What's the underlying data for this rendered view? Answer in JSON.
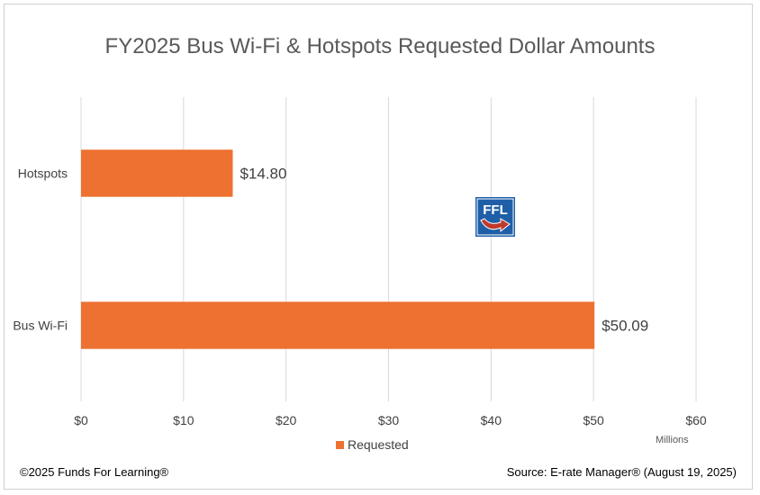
{
  "chart_data": {
    "type": "bar",
    "orientation": "horizontal",
    "title": "FY2025 Bus Wi-Fi & Hotspots Requested Dollar Amounts",
    "categories": [
      "Hotspots",
      "Bus Wi-Fi"
    ],
    "series": [
      {
        "name": "Requested",
        "values": [
          14.8,
          50.09
        ],
        "labels": [
          "$14.80",
          "$50.09"
        ],
        "color": "#ED7131"
      }
    ],
    "xlim": [
      0,
      60
    ],
    "xticks": [
      0,
      10,
      20,
      30,
      40,
      50,
      60
    ],
    "xtick_labels": [
      "$0",
      "$10",
      "$20",
      "$30",
      "$40",
      "$50",
      "$60"
    ],
    "x_units": "Millions",
    "grid": true,
    "legend_position": "bottom"
  },
  "footer": {
    "copyright": "©2025 Funds For Learning®",
    "source": "Source: E-rate Manager® (August 19, 2025)"
  },
  "logo": {
    "text": "FFL",
    "color": "#1F5FA8",
    "arrow_color": "#C0392B"
  }
}
